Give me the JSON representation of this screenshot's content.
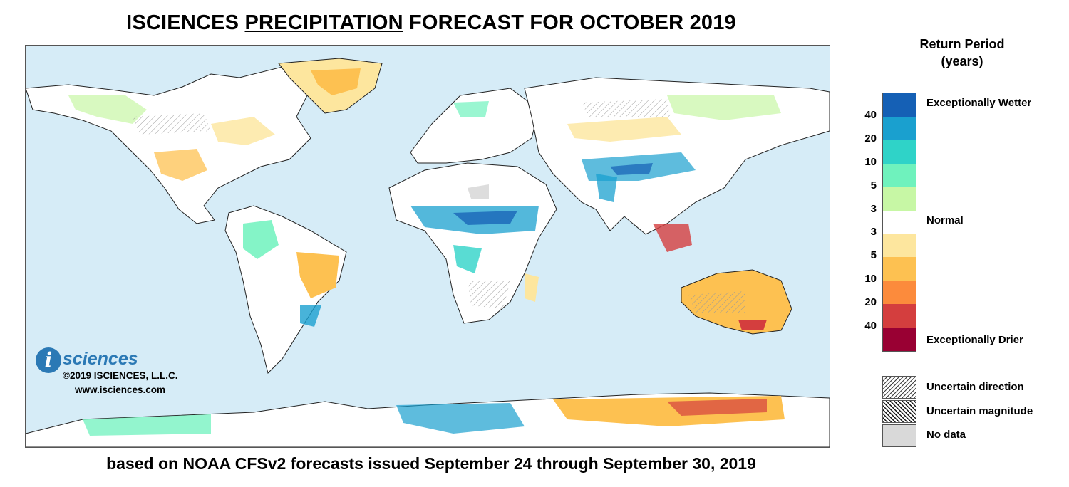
{
  "title": {
    "part1": "ISCIENCES ",
    "emph": "PRECIPITATION",
    "part2": " FORECAST FOR OCTOBER 2019"
  },
  "footer": "based on NOAA CFSv2 forecasts issued September 24 through September 30, 2019",
  "legend": {
    "title_line1": "Return Period",
    "title_line2": "(years)",
    "colors": [
      "#1560b5",
      "#1aa0cf",
      "#2fd3c8",
      "#6ff2bd",
      "#c7f7a5",
      "#ffffff",
      "#fde69e",
      "#fdc151",
      "#fc8b3c",
      "#d43e3e",
      "#990033"
    ],
    "ticks": [
      "40",
      "20",
      "10",
      "5",
      "3",
      "3",
      "5",
      "10",
      "20",
      "40"
    ],
    "label_wetter": "Exceptionally Wetter",
    "label_normal": "Normal",
    "label_drier": "Exceptionally Drier",
    "patterns": [
      {
        "name": "Uncertain direction"
      },
      {
        "name": "Uncertain magnitude"
      },
      {
        "name": "No data"
      }
    ]
  },
  "branding": {
    "logo_letter": "i",
    "logo_word": "sciences",
    "copyright": "©2019 ISCIENCES, L.L.C.",
    "website": "www.isciences.com"
  }
}
